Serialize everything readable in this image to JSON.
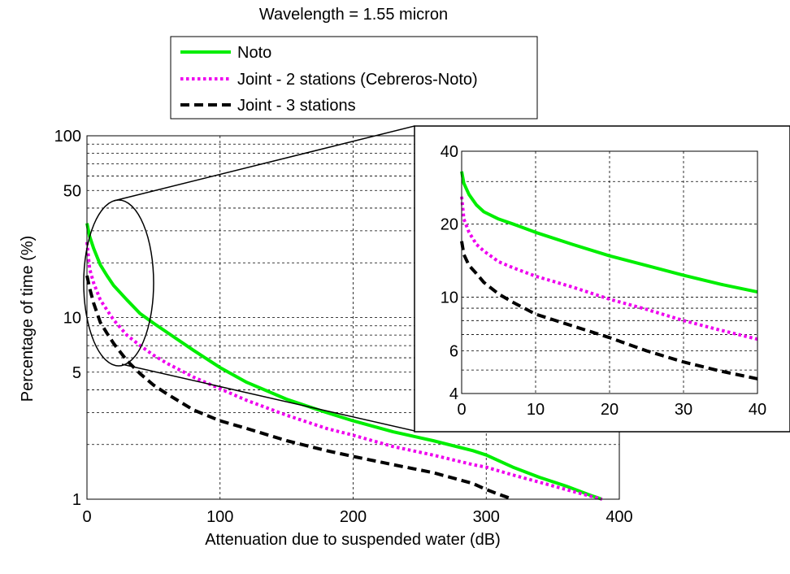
{
  "chart_data": [
    {
      "type": "line",
      "title": "Wavelength = 1.55 micron",
      "xlabel": "Attenuation due to suspended water (dB)",
      "ylabel": "Percentage of time (%)",
      "xlim": [
        0,
        400
      ],
      "ylim": [
        1,
        100
      ],
      "yscale": "log",
      "grid": true,
      "legend_position": "top",
      "xticks": [
        0,
        100,
        200,
        300,
        400
      ],
      "xtick_labels": [
        "0",
        "100",
        "200",
        "300",
        "400"
      ],
      "yticks": [
        1,
        5,
        10,
        50,
        100
      ],
      "ytick_labels": [
        "1",
        "5",
        "10",
        "50",
        "100"
      ],
      "series": [
        {
          "name": "Noto",
          "color": "#00ee00",
          "dash": "solid",
          "x": [
            0,
            2,
            5,
            10,
            15,
            20,
            30,
            40,
            50,
            60,
            80,
            100,
            120,
            150,
            180,
            200,
            230,
            260,
            290,
            300,
            320,
            340,
            360,
            380,
            387
          ],
          "y": [
            33,
            28,
            24,
            19.5,
            17,
            15,
            12.5,
            10.5,
            9.3,
            8.3,
            6.6,
            5.3,
            4.4,
            3.55,
            3.0,
            2.7,
            2.35,
            2.1,
            1.85,
            1.75,
            1.5,
            1.32,
            1.18,
            1.04,
            1.0
          ]
        },
        {
          "name": "Joint - 2 stations (Cebreros-Noto)",
          "color": "#ee00ee",
          "dash": "dotted",
          "x": [
            0,
            2,
            5,
            10,
            15,
            20,
            30,
            40,
            50,
            60,
            80,
            100,
            120,
            150,
            180,
            200,
            230,
            260,
            290,
            300,
            320,
            340,
            360,
            380,
            387
          ],
          "y": [
            26,
            18.5,
            15.5,
            12.5,
            11,
            9.7,
            8.0,
            7.0,
            6.2,
            5.6,
            4.7,
            4.05,
            3.5,
            2.9,
            2.45,
            2.25,
            1.95,
            1.75,
            1.55,
            1.5,
            1.36,
            1.24,
            1.13,
            1.03,
            1.0
          ]
        },
        {
          "name": "Joint - 3 stations",
          "color": "#000000",
          "dash": "dashed",
          "x": [
            0,
            2,
            5,
            10,
            15,
            20,
            30,
            40,
            50,
            60,
            80,
            100,
            120,
            150,
            180,
            200,
            230,
            260,
            290,
            300,
            310,
            320
          ],
          "y": [
            17,
            14.5,
            12,
            9.4,
            8.2,
            7.2,
            5.8,
            4.9,
            4.25,
            3.8,
            3.1,
            2.7,
            2.45,
            2.1,
            1.85,
            1.72,
            1.55,
            1.4,
            1.22,
            1.13,
            1.06,
            1.0
          ]
        }
      ]
    },
    {
      "type": "line",
      "role": "inset",
      "xlim": [
        0,
        40
      ],
      "ylim": [
        4,
        40
      ],
      "yscale": "log",
      "grid": true,
      "xticks": [
        0,
        10,
        20,
        30,
        40
      ],
      "xtick_labels": [
        "0",
        "10",
        "20",
        "30",
        "40"
      ],
      "yticks": [
        4,
        6,
        10,
        20,
        40
      ],
      "ytick_labels": [
        "4",
        "6",
        "10",
        "20",
        "40"
      ],
      "series": [
        {
          "name": "Noto",
          "color": "#00ee00",
          "dash": "solid",
          "x": [
            0,
            0.3,
            1,
            2,
            3,
            5,
            7,
            10,
            15,
            20,
            25,
            30,
            35,
            40
          ],
          "y": [
            33,
            29.5,
            26.5,
            24,
            22.5,
            21,
            20,
            18.5,
            16.5,
            14.8,
            13.5,
            12.3,
            11.3,
            10.5
          ]
        },
        {
          "name": "Joint - 2 stations (Cebreros-Noto)",
          "color": "#ee00ee",
          "dash": "dotted",
          "x": [
            0,
            0.3,
            1,
            2,
            3,
            5,
            7,
            10,
            15,
            20,
            25,
            30,
            35,
            40
          ],
          "y": [
            26,
            21,
            18.5,
            16.5,
            15.5,
            14,
            13.2,
            12.2,
            11,
            9.8,
            8.9,
            8.0,
            7.3,
            6.7
          ]
        },
        {
          "name": "Joint - 3 stations",
          "color": "#000000",
          "dash": "dashed",
          "x": [
            0,
            0.3,
            1,
            2,
            3,
            5,
            7,
            10,
            15,
            20,
            25,
            30,
            35,
            40
          ],
          "y": [
            17,
            15,
            13.5,
            12.5,
            11.5,
            10.3,
            9.5,
            8.5,
            7.6,
            6.8,
            6.0,
            5.4,
            4.95,
            4.6
          ]
        }
      ]
    }
  ]
}
